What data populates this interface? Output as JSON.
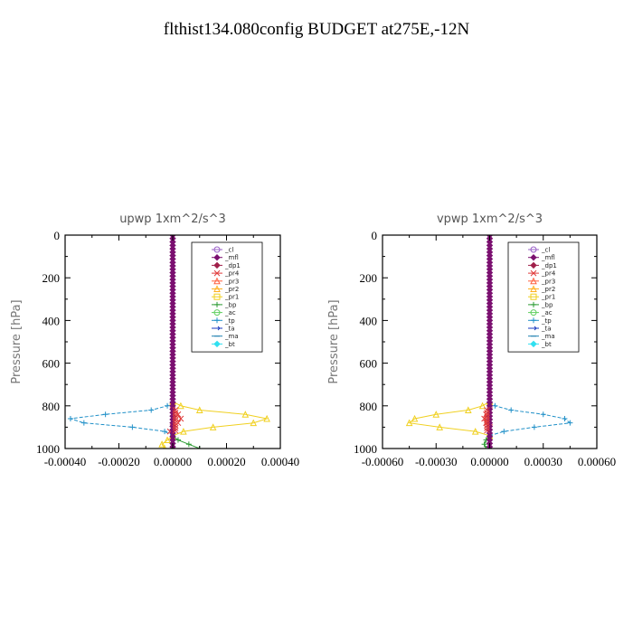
{
  "figure": {
    "title": "flthist134.080config  BUDGET at275E,-12N"
  },
  "legend_entries": [
    {
      "name": "_cl",
      "color": "#9a5fc7",
      "marker": "circle"
    },
    {
      "name": "_mfl",
      "color": "#7b1070",
      "marker": "diamond"
    },
    {
      "name": "_dp1",
      "color": "#a0204a",
      "marker": "diamond"
    },
    {
      "name": "_pr4",
      "color": "#e03b3b",
      "marker": "x"
    },
    {
      "name": "_pr3",
      "color": "#ff6040",
      "marker": "tri"
    },
    {
      "name": "_pr2",
      "color": "#ffb020",
      "marker": "tri"
    },
    {
      "name": "_pr1",
      "color": "#f0d020",
      "marker": "square"
    },
    {
      "name": "_bp",
      "color": "#2a9a30",
      "marker": "plus"
    },
    {
      "name": "_ac",
      "color": "#60d060",
      "marker": "circle"
    },
    {
      "name": "_tp",
      "color": "#2090c8",
      "marker": "plus"
    },
    {
      "name": "_ta",
      "color": "#1a3ac0",
      "marker": "arrow"
    },
    {
      "name": "_ma",
      "color": "#2080b0",
      "marker": "dash"
    },
    {
      "name": "_bt",
      "color": "#30e0f0",
      "marker": "diamond"
    }
  ],
  "chart_data": [
    {
      "type": "line",
      "title": "upwp    1xm^2/s^3",
      "xlabel": "",
      "ylabel": "Pressure [hPa]",
      "xlim": [
        -0.0004,
        0.0004
      ],
      "ylim": [
        1000,
        0
      ],
      "xticks": [
        "-0.00040",
        "-0.00020",
        "0.00000",
        "0.00020",
        "0.00040"
      ],
      "xtick_values": [
        -0.0004,
        -0.0002,
        0,
        0.0002,
        0.0004
      ],
      "yticks": [
        "0",
        "200",
        "400",
        "600",
        "800",
        "1000"
      ],
      "ytick_values": [
        0,
        200,
        400,
        600,
        800,
        1000
      ],
      "legend_position": "top-right",
      "series": [
        {
          "name": "_tp",
          "color": "#2090c8",
          "y": [
            780,
            800,
            820,
            840,
            860,
            880,
            900,
            920,
            940
          ],
          "x": [
            0.0,
            -2e-05,
            -8e-05,
            -0.00025,
            -0.00038,
            -0.00033,
            -0.00015,
            -3e-05,
            0.0
          ]
        },
        {
          "name": "_pr2",
          "color": "#f0d020",
          "y": [
            780,
            800,
            820,
            840,
            860,
            880,
            900,
            920,
            940,
            960,
            980,
            1000
          ],
          "x": [
            0.0,
            3e-05,
            0.0001,
            0.00027,
            0.00035,
            0.0003,
            0.00015,
            4e-05,
            0.0,
            -2e-05,
            -4e-05,
            -3e-05
          ]
        },
        {
          "name": "_pr4",
          "color": "#e03b3b",
          "y": [
            820,
            840,
            860,
            880,
            900,
            920
          ],
          "x": [
            0.0,
            2e-05,
            3e-05,
            2e-05,
            0.0,
            -1e-05
          ]
        },
        {
          "name": "_bp",
          "color": "#2a9a30",
          "y": [
            940,
            960,
            980,
            1000
          ],
          "x": [
            0.0,
            2e-05,
            6e-05,
            0.0001
          ]
        },
        {
          "name": "_mfl",
          "color": "#7b1070",
          "y": [
            0,
            1000
          ],
          "x": [
            0.0,
            0.0
          ]
        }
      ]
    },
    {
      "type": "line",
      "title": "vpwp    1xm^2/s^3",
      "xlabel": "",
      "ylabel": "Pressure [hPa]",
      "xlim": [
        -0.0006,
        0.0006
      ],
      "ylim": [
        1000,
        0
      ],
      "xticks": [
        "-0.00060",
        "-0.00030",
        "0.00000",
        "0.00030",
        "0.00060"
      ],
      "xtick_values": [
        -0.0006,
        -0.0003,
        0,
        0.0003,
        0.0006
      ],
      "yticks": [
        "0",
        "200",
        "400",
        "600",
        "800",
        "1000"
      ],
      "ytick_values": [
        0,
        200,
        400,
        600,
        800,
        1000
      ],
      "legend_position": "top-right",
      "series": [
        {
          "name": "_tp",
          "color": "#2090c8",
          "y": [
            780,
            800,
            820,
            840,
            860,
            880,
            900,
            920,
            940
          ],
          "x": [
            0.0,
            3e-05,
            0.00012,
            0.0003,
            0.00042,
            0.00045,
            0.00025,
            8e-05,
            0.0
          ]
        },
        {
          "name": "_pr2",
          "color": "#f0d020",
          "y": [
            780,
            800,
            820,
            840,
            860,
            880,
            900,
            920,
            940
          ],
          "x": [
            0.0,
            -4e-05,
            -0.00012,
            -0.0003,
            -0.00042,
            -0.00045,
            -0.00028,
            -8e-05,
            0.0
          ]
        },
        {
          "name": "_pr4",
          "color": "#e03b3b",
          "y": [
            820,
            840,
            860,
            880,
            900
          ],
          "x": [
            0.0,
            -2e-05,
            -3e-05,
            -2e-05,
            0.0
          ]
        },
        {
          "name": "_bp",
          "color": "#2a9a30",
          "y": [
            940,
            960,
            980,
            1000
          ],
          "x": [
            0.0,
            -2e-05,
            -3e-05,
            -2e-05
          ]
        },
        {
          "name": "_mfl",
          "color": "#7b1070",
          "y": [
            0,
            1000
          ],
          "x": [
            0.0,
            0.0
          ]
        }
      ]
    }
  ]
}
